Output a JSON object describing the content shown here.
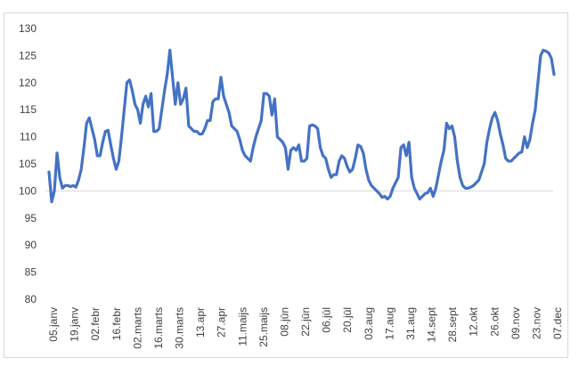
{
  "chart_data": {
    "type": "line",
    "title": "",
    "xlabel": "",
    "ylabel": "",
    "ylim": [
      80,
      130
    ],
    "yticks": [
      80,
      85,
      90,
      95,
      100,
      105,
      110,
      115,
      120,
      125,
      130
    ],
    "grid": "none",
    "reference_line": 100,
    "xtick_labels": [
      "05.janv",
      "19.janv",
      "02.febr",
      "16.febr",
      "02.marts",
      "16.marts",
      "30.marts",
      "13.apr",
      "27.apr",
      "11.maijs",
      "25.maijs",
      "08.jūn",
      "22.jūn",
      "06.jūl",
      "20.jūl",
      "03.aug",
      "17.aug",
      "31.aug",
      "14.sept",
      "28.sept",
      "12.okt",
      "26.okt",
      "09.nov",
      "23.nov",
      "07.dec"
    ],
    "colors": {
      "series": "#4472C4",
      "reference": "#d9d9d9",
      "axis_text": "#404040",
      "border": "#d9d9d9"
    },
    "series": [
      {
        "values": [
          103.5,
          98,
          100,
          107,
          102.5,
          100.5,
          101,
          101,
          100.8,
          101,
          100.7,
          102,
          104,
          108,
          112.5,
          113.5,
          111.5,
          109.5,
          106.5,
          106.5,
          109,
          111,
          111.2,
          108.5,
          106,
          104,
          105.5,
          110,
          115,
          120,
          120.5,
          118.5,
          116,
          115,
          112.5,
          116,
          117.5,
          115.5,
          118,
          111,
          111,
          111.5,
          115,
          118.5,
          121.5,
          126,
          121,
          116,
          120,
          116,
          117,
          119,
          112,
          111.5,
          111,
          111,
          110.5,
          110.5,
          111.5,
          113,
          113,
          116.5,
          117,
          117,
          121,
          117.5,
          116,
          114.5,
          112,
          111.5,
          111,
          109.5,
          107.5,
          106.5,
          106,
          105.5,
          108,
          110,
          111.5,
          113,
          118,
          118,
          117.5,
          114,
          117,
          110,
          109.5,
          109,
          108,
          104,
          107.5,
          108,
          107.5,
          108.5,
          105.5,
          105.5,
          106,
          112,
          112.2,
          112,
          111.5,
          108,
          106.5,
          106,
          104,
          102.5,
          103,
          103,
          105.5,
          106.5,
          106,
          104.5,
          103.5,
          104,
          106,
          108.5,
          108.2,
          107,
          104,
          102,
          101,
          100.5,
          100,
          99.5,
          98.8,
          99,
          98.5,
          99,
          100.5,
          101.5,
          102.5,
          108,
          108.5,
          106.5,
          109,
          102.5,
          100.5,
          99.5,
          98.5,
          99,
          99.5,
          99.7,
          100.5,
          99,
          100.5,
          103,
          105.5,
          107.5,
          112.5,
          111.5,
          112,
          110,
          105.5,
          102.5,
          101,
          100.5,
          100.5,
          100.7,
          101,
          101.5,
          102,
          103.5,
          105,
          109,
          111.5,
          113.5,
          114.5,
          113,
          110.5,
          108.5,
          106,
          105.5,
          105.5,
          106,
          106.5,
          107,
          107.2,
          110,
          108,
          109.5,
          112.5,
          115,
          120,
          125,
          126,
          125.8,
          125.5,
          124.5,
          121.5
        ]
      }
    ]
  }
}
